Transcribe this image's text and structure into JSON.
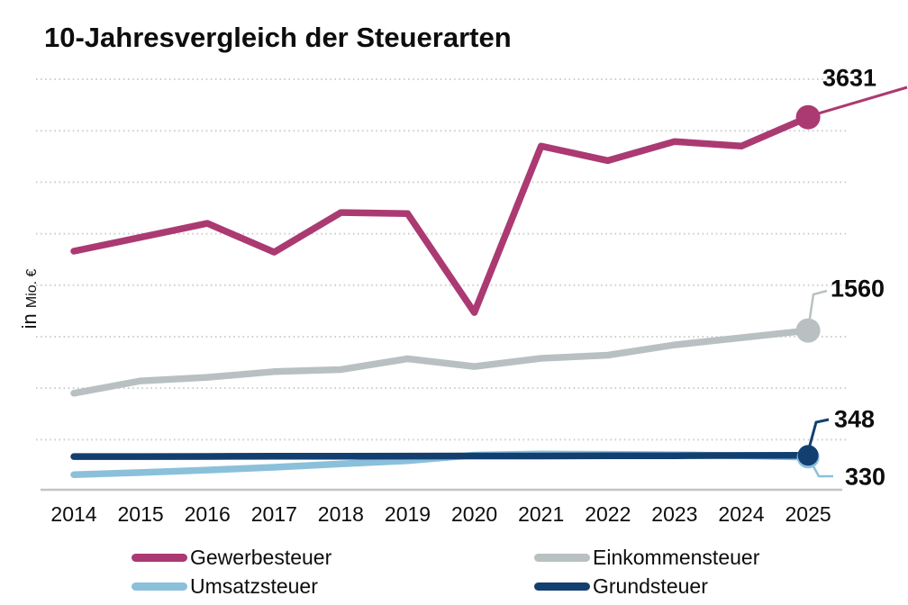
{
  "title": "10-Jahresvergleich der Steuerarten",
  "y_axis": {
    "unit_prefix": "in",
    "unit": "Mio. €"
  },
  "chart_data": {
    "type": "line",
    "title": "10-Jahresvergleich der Steuerarten",
    "ylabel": "in Mio. €",
    "xlabel": "",
    "x": [
      "2014",
      "2015",
      "2016",
      "2017",
      "2018",
      "2019",
      "2020",
      "2021",
      "2022",
      "2023",
      "2024",
      "2025"
    ],
    "ylim": [
      0,
      4000
    ],
    "grid_step": 500,
    "grid": true,
    "legend_position": "bottom",
    "series": [
      {
        "name": "Umsatzsteuer",
        "color": "#8bc0da",
        "dot_r": 12.5,
        "values": [
          160,
          180,
          205,
          232,
          265,
          295,
          350,
          360,
          358,
          353,
          344,
          330
        ],
        "end_label": "330"
      },
      {
        "name": "Grundsteuer",
        "color": "#133f70",
        "dot_r": 11.5,
        "values": [
          336,
          336,
          337,
          338,
          339,
          340,
          341,
          341,
          343,
          344,
          346,
          348
        ],
        "end_label": "348"
      },
      {
        "name": "Einkommensteuer",
        "color": "#b9c0c2",
        "dot_r": 13.5,
        "values": [
          950,
          1070,
          1105,
          1160,
          1180,
          1285,
          1210,
          1290,
          1320,
          1420,
          1490,
          1560
        ],
        "end_label": "1560"
      },
      {
        "name": "Gewerbesteuer",
        "color": "#ab3a72",
        "dot_r": 13.5,
        "values": [
          2330,
          2465,
          2600,
          2320,
          2705,
          2695,
          1735,
          3350,
          3210,
          3395,
          3350,
          3631
        ],
        "end_label": "3631"
      }
    ]
  }
}
